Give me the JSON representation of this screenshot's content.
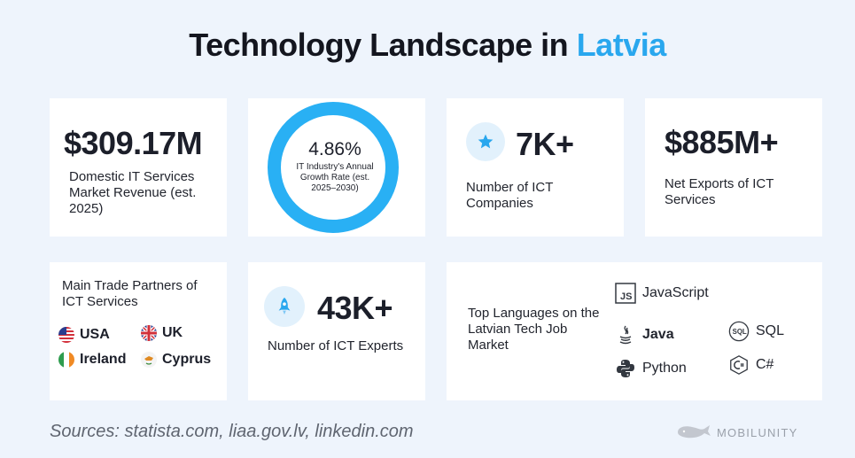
{
  "header": {
    "title_main": "Technology Landscape in",
    "title_accent": "Latvia"
  },
  "cards": {
    "revenue": {
      "value": "$309.17M",
      "label": "Domestic IT Services Market Revenue (est. 2025)"
    },
    "growth": {
      "value": "4.86%",
      "label": "IT Industry's Annual Growth Rate (est. 2025–2030)",
      "ring_color": "#29b0f4"
    },
    "companies": {
      "value": "7K+",
      "label": "Number of ICT Companies",
      "icon": "star-icon"
    },
    "exports": {
      "value": "$885M+",
      "label": "Net Exports of ICT Services"
    },
    "partners": {
      "label": "Main Trade Partners of ICT Services",
      "items": [
        {
          "name": "USA",
          "icon": "usa-flag-icon"
        },
        {
          "name": "UK",
          "icon": "uk-flag-icon"
        },
        {
          "name": "Ireland",
          "icon": "ireland-flag-icon"
        },
        {
          "name": "Cyprus",
          "icon": "cyprus-flag-icon"
        }
      ]
    },
    "experts": {
      "value": "43K+",
      "label": "Number of ICT Experts",
      "icon": "rocket-icon"
    },
    "languages": {
      "label": "Top Languages on the Latvian Tech Job Market",
      "items": [
        {
          "name": "JavaScript",
          "icon": "javascript-icon"
        },
        {
          "name": "Java",
          "icon": "java-icon"
        },
        {
          "name": "SQL",
          "icon": "sql-icon"
        },
        {
          "name": "Python",
          "icon": "python-icon"
        },
        {
          "name": "C#",
          "icon": "csharp-icon"
        }
      ]
    }
  },
  "footer": {
    "sources": "Sources: statista.com, liaa.gov.lv, linkedin.com",
    "brand": "MOBILUNITY"
  },
  "colors": {
    "accent": "#29a7ee",
    "background": "#eef4fc"
  }
}
